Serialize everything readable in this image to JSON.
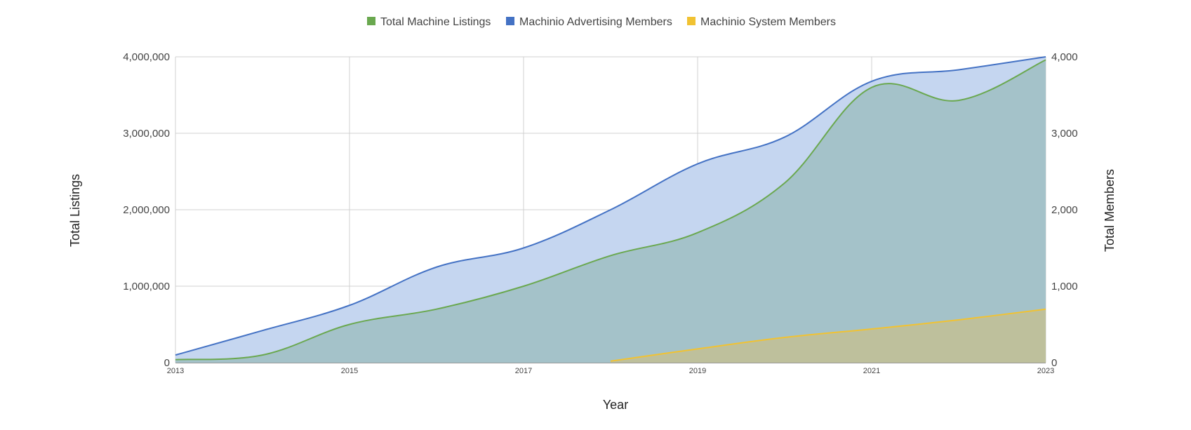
{
  "chart_data": {
    "type": "area",
    "legend_position": "top-center",
    "grid": true,
    "xlabel": "Year",
    "ylabel_left": "Total Listings",
    "ylabel_right": "Total Members",
    "xlim": [
      2013,
      2023
    ],
    "ylim_left": [
      0,
      4000000
    ],
    "ylim_right": [
      0,
      4000
    ],
    "x_ticks": [
      2013,
      2015,
      2017,
      2019,
      2021,
      2023
    ],
    "x_tick_labels": [
      "2013",
      "2015",
      "2017",
      "2019",
      "2021",
      "2023"
    ],
    "y_left_ticks": [
      0,
      1000000,
      2000000,
      3000000,
      4000000
    ],
    "y_left_tick_labels": [
      "0",
      "1,000,000",
      "2,000,000",
      "3,000,000",
      "4,000,000"
    ],
    "y_right_ticks": [
      0,
      1000,
      2000,
      3000,
      4000
    ],
    "y_right_tick_labels": [
      "0",
      "1,000",
      "2,000",
      "3,000",
      "4,000"
    ],
    "legend": [
      "Total Machine Listings",
      "Machinio Advertising Members",
      "Machinio System Members"
    ],
    "series": [
      {
        "name": "Machinio Advertising Members",
        "axis": "right",
        "color": "#4472c4",
        "fill": "#c5d6f0",
        "x": [
          2013,
          2014,
          2015,
          2016,
          2017,
          2018,
          2019,
          2020,
          2021,
          2022,
          2023
        ],
        "values": [
          100,
          420,
          750,
          1250,
          1500,
          2000,
          2600,
          2950,
          3680,
          3830,
          4000
        ]
      },
      {
        "name": "Total Machine Listings",
        "axis": "left",
        "color": "#6aa84f",
        "fill": "#a4c2c9",
        "x": [
          2013,
          2014,
          2015,
          2016,
          2017,
          2018,
          2019,
          2020,
          2021,
          2022,
          2023
        ],
        "values": [
          40000,
          100000,
          500000,
          700000,
          1000000,
          1400000,
          1700000,
          2350000,
          3600000,
          3430000,
          3960000
        ]
      },
      {
        "name": "Machinio System Members",
        "axis": "right",
        "color": "#f1c232",
        "fill": "#bec09c",
        "x": [
          2018,
          2019,
          2020,
          2021,
          2022,
          2023
        ],
        "values": [
          20,
          180,
          330,
          440,
          560,
          700
        ]
      }
    ]
  }
}
